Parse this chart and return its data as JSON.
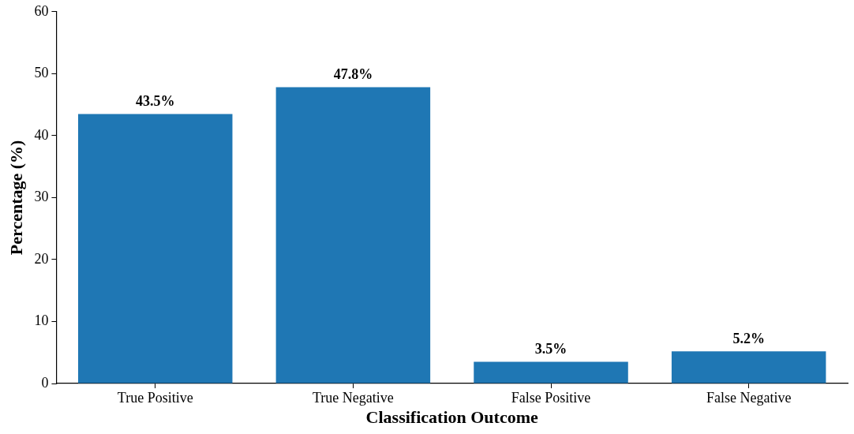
{
  "chart_data": {
    "type": "bar",
    "xlabel": "Classification Outcome",
    "ylabel": "Percentage (%)",
    "categories": [
      "True Positive",
      "True Negative",
      "False Positive",
      "False Negative"
    ],
    "values": [
      43.5,
      47.8,
      3.5,
      5.2
    ],
    "value_labels": [
      "43.5%",
      "47.8%",
      "3.5%",
      "5.2%"
    ],
    "color": "#1f77b4",
    "ylim": [
      0,
      60
    ],
    "yticks": [
      0,
      10,
      20,
      30,
      40,
      50,
      60
    ],
    "grid": false,
    "legend": false
  }
}
